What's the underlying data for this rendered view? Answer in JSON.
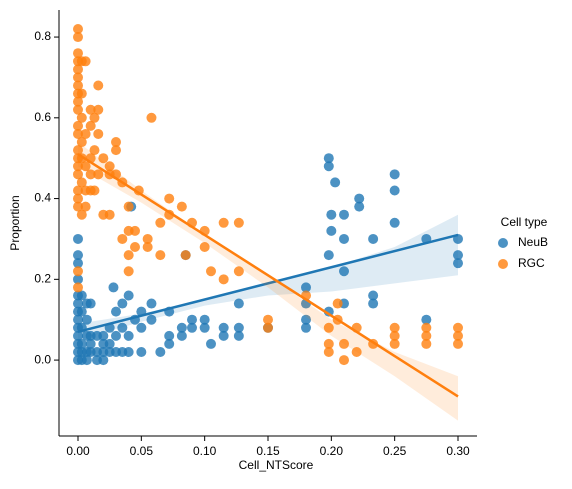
{
  "chart_data": {
    "type": "scatter",
    "x_label": "Cell_NTScore",
    "y_label": "Proportion",
    "legend_title": "Cell type",
    "legend": "right",
    "xlim": [
      -0.015,
      0.315
    ],
    "ylim": [
      -0.188,
      0.867
    ],
    "xticks": [
      {
        "value": 0,
        "label": "0.00"
      },
      0.05,
      {
        "value": 0.1,
        "label": "0.10"
      },
      0.15,
      {
        "value": 0.2,
        "label": "0.20"
      },
      0.25,
      {
        "value": 0.3,
        "label": "0.30"
      }
    ],
    "yticks": [
      {
        "value": 0,
        "label": "0.0"
      },
      0.2,
      0.4,
      0.6,
      0.8
    ],
    "series": [
      {
        "name": "NeuB",
        "color": "#1f77b4",
        "x": [
          0,
          0,
          0,
          0,
          0,
          0,
          0,
          0,
          0,
          0,
          0,
          0,
          0,
          0.003,
          0.003,
          0.003,
          0.003,
          0.003,
          0.003,
          0.007,
          0.007,
          0.007,
          0.007,
          0.007,
          0.01,
          0.01,
          0.01,
          0.01,
          0.015,
          0.015,
          0.015,
          0.02,
          0.02,
          0.02,
          0.02,
          0.025,
          0.025,
          0.025,
          0.028,
          0.03,
          0.03,
          0.03,
          0.035,
          0.035,
          0.035,
          0.04,
          0.04,
          0.04,
          0.042,
          0.045,
          0.05,
          0.05,
          0.05,
          0.058,
          0.058,
          0.065,
          0.072,
          0.072,
          0.072,
          0.082,
          0.082,
          0.085,
          0.09,
          0.09,
          0.1,
          0.1,
          0.105,
          0.115,
          0.115,
          0.127,
          0.127,
          0.127,
          0.15,
          0.18,
          0.18,
          0.18,
          0.18,
          0.198,
          0.198,
          0.198,
          0.198,
          0.2,
          0.2,
          0.203,
          0.21,
          0.21,
          0.21,
          0.21,
          0.222,
          0.222,
          0.233,
          0.233,
          0.233,
          0.25,
          0.25,
          0.25,
          0.275,
          0.275,
          0.3,
          0.3,
          0.3
        ],
        "values": [
          0.3,
          0.26,
          0.24,
          0.2,
          0.16,
          0.14,
          0.12,
          0.1,
          0.08,
          0.06,
          0.04,
          0.02,
          0.0,
          0.16,
          0.12,
          0.08,
          0.04,
          0.02,
          0.0,
          0.14,
          0.1,
          0.06,
          0.02,
          0.0,
          0.14,
          0.06,
          0.04,
          0.02,
          0.06,
          0.02,
          0.0,
          0.06,
          0.04,
          0.0,
          0.02,
          0.08,
          0.04,
          0.02,
          0.18,
          0.12,
          0.06,
          0.02,
          0.14,
          0.08,
          0.02,
          0.16,
          0.06,
          0.02,
          0.38,
          0.1,
          0.12,
          0.08,
          0.02,
          0.14,
          0.1,
          0.02,
          0.12,
          0.06,
          0.04,
          0.08,
          0.06,
          0.26,
          0.1,
          0.08,
          0.1,
          0.08,
          0.04,
          0.08,
          0.06,
          0.14,
          0.08,
          0.06,
          0.08,
          0.18,
          0.14,
          0.1,
          0.08,
          0.5,
          0.48,
          0.26,
          0.12,
          0.36,
          0.32,
          0.44,
          0.36,
          0.22,
          0.3,
          0.14,
          0.4,
          0.38,
          0.3,
          0.16,
          0.14,
          0.46,
          0.42,
          0.34,
          0.3,
          0.1,
          0.3,
          0.26,
          0.24
        ],
        "fit_x": [
          0,
          0.3
        ],
        "fit_values": [
          0.07,
          0.31
        ],
        "ci_x": [
          0,
          0.05,
          0.1,
          0.15,
          0.2,
          0.25,
          0.3
        ],
        "ci_lower": [
          0.05,
          0.095,
          0.135,
          0.16,
          0.17,
          0.19,
          0.21
        ],
        "ci_upper": [
          0.09,
          0.115,
          0.15,
          0.19,
          0.23,
          0.28,
          0.36
        ]
      },
      {
        "name": "RGC",
        "color": "#ff7f0e",
        "x": [
          0,
          0,
          0,
          0,
          0,
          0,
          0,
          0,
          0,
          0,
          0,
          0,
          0,
          0,
          0,
          0,
          0,
          0,
          0,
          0,
          0,
          0.003,
          0.003,
          0.003,
          0.003,
          0.003,
          0.003,
          0.003,
          0.006,
          0.006,
          0.006,
          0.006,
          0.006,
          0.01,
          0.01,
          0.01,
          0.01,
          0.01,
          0.013,
          0.013,
          0.013,
          0.016,
          0.016,
          0.016,
          0.016,
          0.02,
          0.02,
          0.025,
          0.025,
          0.025,
          0.03,
          0.03,
          0.03,
          0.035,
          0.035,
          0.04,
          0.04,
          0.04,
          0.04,
          0.045,
          0.045,
          0.048,
          0.055,
          0.055,
          0.058,
          0.065,
          0.065,
          0.072,
          0.072,
          0.082,
          0.085,
          0.09,
          0.1,
          0.1,
          0.105,
          0.115,
          0.115,
          0.127,
          0.127,
          0.15,
          0.15,
          0.18,
          0.198,
          0.198,
          0.198,
          0.205,
          0.205,
          0.21,
          0.21,
          0.22,
          0.22,
          0.233,
          0.25,
          0.25,
          0.25,
          0.275,
          0.275,
          0.275,
          0.3,
          0.3,
          0.3
        ],
        "values": [
          0.82,
          0.8,
          0.76,
          0.74,
          0.72,
          0.7,
          0.68,
          0.66,
          0.64,
          0.62,
          0.58,
          0.56,
          0.52,
          0.5,
          0.48,
          0.46,
          0.42,
          0.4,
          0.38,
          0.22,
          0.18,
          0.74,
          0.66,
          0.6,
          0.54,
          0.5,
          0.44,
          0.36,
          0.74,
          0.56,
          0.48,
          0.42,
          0.38,
          0.62,
          0.58,
          0.5,
          0.46,
          0.42,
          0.6,
          0.52,
          0.42,
          0.68,
          0.62,
          0.56,
          0.46,
          0.5,
          0.36,
          0.48,
          0.46,
          0.36,
          0.54,
          0.52,
          0.46,
          0.44,
          0.3,
          0.38,
          0.32,
          0.26,
          0.22,
          0.32,
          0.28,
          0.42,
          0.3,
          0.28,
          0.6,
          0.34,
          0.26,
          0.4,
          0.36,
          0.38,
          0.26,
          0.34,
          0.32,
          0.28,
          0.22,
          0.34,
          0.2,
          0.34,
          0.22,
          0.08,
          0.1,
          0.16,
          0.08,
          0.04,
          0.02,
          0.14,
          0.1,
          0.04,
          0.0,
          0.08,
          0.02,
          0.04,
          0.08,
          0.06,
          0.04,
          0.08,
          0.06,
          0.04,
          0.08,
          0.06,
          0.04
        ],
        "fit_x": [
          0,
          0.3
        ],
        "fit_values": [
          0.51,
          -0.09
        ],
        "ci_x": [
          0,
          0.05,
          0.1,
          0.15,
          0.2,
          0.25,
          0.3
        ],
        "ci_lower": [
          0.48,
          0.39,
          0.29,
          0.18,
          0.06,
          -0.04,
          -0.15
        ],
        "ci_upper": [
          0.54,
          0.42,
          0.31,
          0.21,
          0.1,
          0.02,
          -0.04
        ]
      }
    ]
  }
}
